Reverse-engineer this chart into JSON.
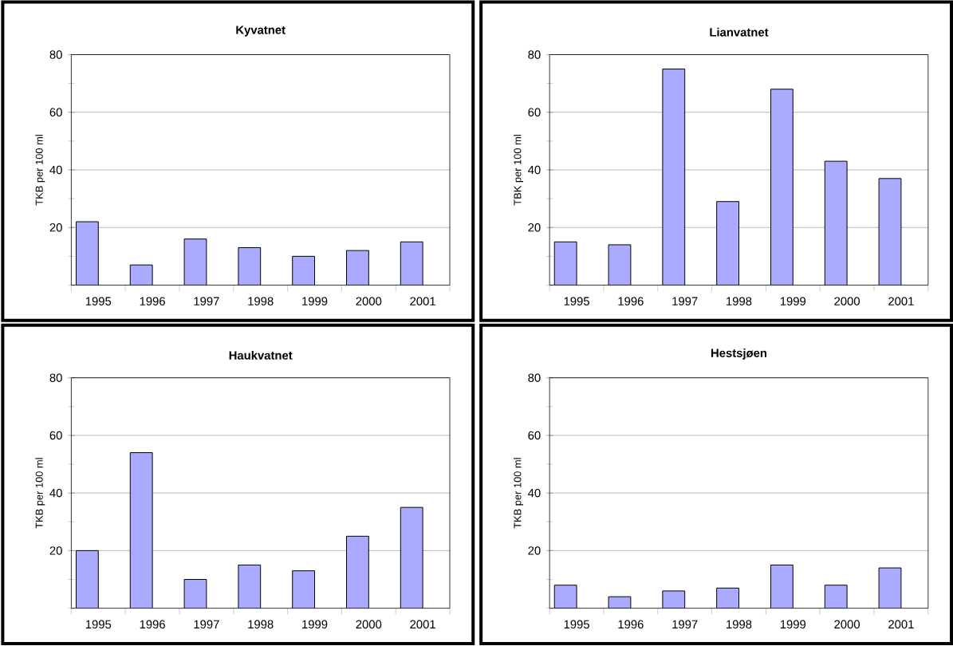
{
  "chart_data": [
    {
      "type": "bar",
      "title": "Kyvatnet",
      "ylabel": "TKB per 100 ml",
      "categories": [
        "1995",
        "1996",
        "1997",
        "1998",
        "1999",
        "2000",
        "2001"
      ],
      "values": [
        22,
        7,
        16,
        13,
        10,
        12,
        15
      ],
      "color": "#aaaaff",
      "ylim": [
        0,
        80
      ],
      "yticks": [
        20,
        40,
        60,
        80
      ],
      "grid": "y"
    },
    {
      "type": "bar",
      "title": "Lianvatnet",
      "ylabel": "TBK per 100 ml",
      "categories": [
        "1995",
        "1996",
        "1997",
        "1998",
        "1999",
        "2000",
        "2001"
      ],
      "values": [
        15,
        14,
        75,
        29,
        68,
        43,
        37
      ],
      "color": "#aaaaff",
      "ylim": [
        0,
        80
      ],
      "yticks": [
        20,
        40,
        60,
        80
      ],
      "grid": "y"
    },
    {
      "type": "bar",
      "title": "Haukvatnet",
      "ylabel": "TKB per 100 ml",
      "categories": [
        "1995",
        "1996",
        "1997",
        "1998",
        "1999",
        "2000",
        "2001"
      ],
      "values": [
        20,
        54,
        10,
        15,
        13,
        25,
        35
      ],
      "color": "#aaaaff",
      "ylim": [
        0,
        80
      ],
      "yticks": [
        20,
        40,
        60,
        80
      ],
      "grid": "y"
    },
    {
      "type": "bar",
      "title": "Hestsjøen",
      "ylabel": "TKB per 100 ml",
      "categories": [
        "1995",
        "1996",
        "1997",
        "1998",
        "1999",
        "2000",
        "2001"
      ],
      "values": [
        8,
        4,
        6,
        7,
        15,
        8,
        14
      ],
      "color": "#aaaaff",
      "ylim": [
        0,
        80
      ],
      "yticks": [
        20,
        40,
        60,
        80
      ],
      "grid": "y"
    }
  ]
}
